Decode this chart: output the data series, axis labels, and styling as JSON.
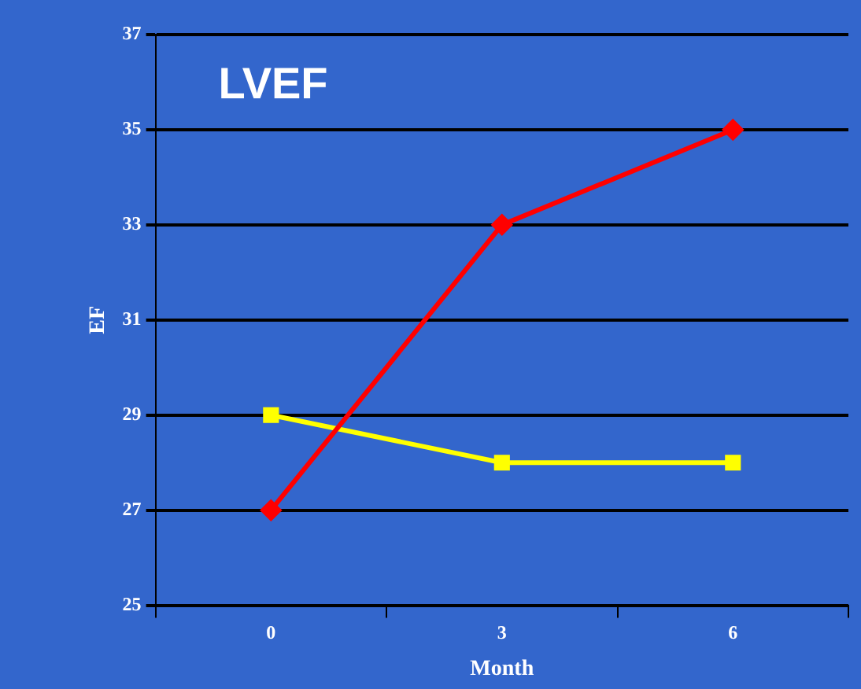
{
  "chart_data": {
    "type": "line",
    "title": "LVEF",
    "xlabel": "Month",
    "ylabel": "EF",
    "categories": [
      "0",
      "3",
      "6"
    ],
    "series": [
      {
        "color": "#ff0000",
        "values": [
          27,
          33,
          35
        ],
        "marker": "diamond"
      },
      {
        "color": "#ffff00",
        "values": [
          29,
          28,
          28
        ],
        "marker": "square"
      }
    ],
    "ylim": [
      25,
      37
    ],
    "yticks": [
      25,
      27,
      29,
      31,
      33,
      35,
      37
    ],
    "grid": "y",
    "legend": false
  }
}
